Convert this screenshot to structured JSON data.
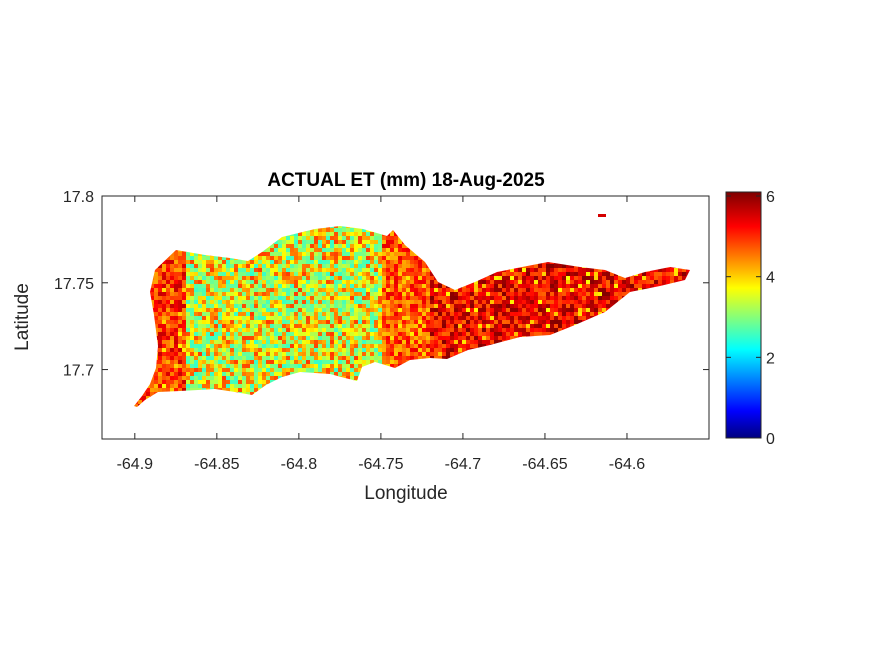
{
  "title": "ACTUAL ET (mm) 18-Aug-2025",
  "xlabel": "Longitude",
  "ylabel": "Latitude",
  "xlim": [
    -64.92,
    -64.55
  ],
  "ylim": [
    17.66,
    17.8
  ],
  "xticks": [
    {
      "v": -64.9,
      "t": "-64.9"
    },
    {
      "v": -64.85,
      "t": "-64.85"
    },
    {
      "v": -64.8,
      "t": "-64.8"
    },
    {
      "v": -64.75,
      "t": "-64.75"
    },
    {
      "v": -64.7,
      "t": "-64.7"
    },
    {
      "v": -64.65,
      "t": "-64.65"
    },
    {
      "v": -64.6,
      "t": "-64.6"
    }
  ],
  "yticks": [
    {
      "v": 17.7,
      "t": "17.7"
    },
    {
      "v": 17.75,
      "t": "17.75"
    },
    {
      "v": 17.8,
      "t": "17.8"
    }
  ],
  "colorbar": {
    "colormap": "jet",
    "clim": [
      0,
      6.1
    ],
    "ticks": [
      {
        "v": 0,
        "t": "0"
      },
      {
        "v": 2,
        "t": "2"
      },
      {
        "v": 4,
        "t": "4"
      },
      {
        "v": 6,
        "t": "6"
      }
    ]
  },
  "chart_data": {
    "type": "heatmap",
    "title": "ACTUAL ET (mm) 18-Aug-2025",
    "xlabel": "Longitude",
    "ylabel": "Latitude",
    "xlim": [
      -64.92,
      -64.55
    ],
    "ylim": [
      17.66,
      17.8
    ],
    "grid": false,
    "colormap": "jet",
    "color_range": [
      0,
      6.1
    ],
    "units": "mm",
    "regions": [
      {
        "lon_range": [
          -64.9,
          -64.87
        ],
        "typical_value": 5.0
      },
      {
        "lon_range": [
          -64.87,
          -64.75
        ],
        "typical_value": 3.8
      },
      {
        "lon_range": [
          -64.75,
          -64.72
        ],
        "typical_value": 4.8
      },
      {
        "lon_range": [
          -64.72,
          -64.565
        ],
        "typical_value": 5.4
      }
    ]
  }
}
